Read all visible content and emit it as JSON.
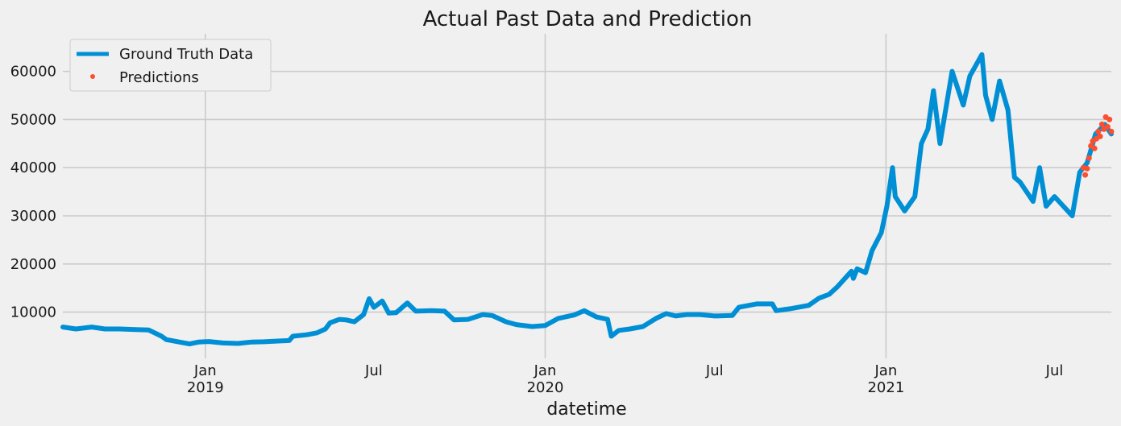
{
  "chart_data": {
    "type": "line",
    "title": "Actual Past Data and Prediction",
    "xlabel": "datetime",
    "ylabel": "",
    "x_range": [
      "2018-08-01",
      "2021-08-31"
    ],
    "ylim": [
      400,
      67800
    ],
    "y_ticks": [
      10000,
      20000,
      30000,
      40000,
      50000,
      60000
    ],
    "x_ticks": [
      {
        "date": "2019-01-01",
        "label": "Jan",
        "sublabel": "2019",
        "grid": true
      },
      {
        "date": "2019-07-01",
        "label": "Jul",
        "sublabel": "",
        "grid": false
      },
      {
        "date": "2020-01-01",
        "label": "Jan",
        "sublabel": "2020",
        "grid": true
      },
      {
        "date": "2020-07-01",
        "label": "Jul",
        "sublabel": "",
        "grid": false
      },
      {
        "date": "2021-01-01",
        "label": "Jan",
        "sublabel": "2021",
        "grid": true
      },
      {
        "date": "2021-07-01",
        "label": "Jul",
        "sublabel": "",
        "grid": false
      }
    ],
    "grid": true,
    "legend_position": "top-left",
    "series": [
      {
        "name": "Ground Truth Data",
        "style": "line",
        "color": "#008fd5",
        "points": [
          [
            "2018-08-01",
            6900
          ],
          [
            "2018-08-15",
            6500
          ],
          [
            "2018-09-01",
            6900
          ],
          [
            "2018-09-15",
            6500
          ],
          [
            "2018-10-01",
            6500
          ],
          [
            "2018-10-15",
            6400
          ],
          [
            "2018-11-01",
            6300
          ],
          [
            "2018-11-15",
            5000
          ],
          [
            "2018-11-20",
            4300
          ],
          [
            "2018-12-01",
            3900
          ],
          [
            "2018-12-15",
            3400
          ],
          [
            "2018-12-25",
            3800
          ],
          [
            "2019-01-05",
            3900
          ],
          [
            "2019-01-20",
            3600
          ],
          [
            "2019-02-05",
            3500
          ],
          [
            "2019-02-20",
            3800
          ],
          [
            "2019-03-05",
            3850
          ],
          [
            "2019-03-20",
            4000
          ],
          [
            "2019-04-01",
            4100
          ],
          [
            "2019-04-05",
            5000
          ],
          [
            "2019-04-20",
            5300
          ],
          [
            "2019-05-01",
            5700
          ],
          [
            "2019-05-10",
            6500
          ],
          [
            "2019-05-15",
            7800
          ],
          [
            "2019-05-25",
            8500
          ],
          [
            "2019-06-01",
            8400
          ],
          [
            "2019-06-10",
            8000
          ],
          [
            "2019-06-20",
            9500
          ],
          [
            "2019-06-26",
            12800
          ],
          [
            "2019-07-01",
            11000
          ],
          [
            "2019-07-10",
            12300
          ],
          [
            "2019-07-17",
            9800
          ],
          [
            "2019-07-25",
            9900
          ],
          [
            "2019-08-06",
            11900
          ],
          [
            "2019-08-15",
            10200
          ],
          [
            "2019-09-01",
            10300
          ],
          [
            "2019-09-15",
            10200
          ],
          [
            "2019-09-25",
            8400
          ],
          [
            "2019-10-10",
            8500
          ],
          [
            "2019-10-26",
            9500
          ],
          [
            "2019-11-05",
            9300
          ],
          [
            "2019-11-20",
            8000
          ],
          [
            "2019-12-01",
            7400
          ],
          [
            "2019-12-18",
            7000
          ],
          [
            "2020-01-01",
            7200
          ],
          [
            "2020-01-15",
            8700
          ],
          [
            "2020-02-01",
            9400
          ],
          [
            "2020-02-12",
            10300
          ],
          [
            "2020-02-25",
            9000
          ],
          [
            "2020-03-08",
            8500
          ],
          [
            "2020-03-12",
            5000
          ],
          [
            "2020-03-20",
            6200
          ],
          [
            "2020-04-01",
            6500
          ],
          [
            "2020-04-15",
            7000
          ],
          [
            "2020-04-29",
            8700
          ],
          [
            "2020-05-10",
            9700
          ],
          [
            "2020-05-20",
            9200
          ],
          [
            "2020-06-01",
            9500
          ],
          [
            "2020-06-15",
            9500
          ],
          [
            "2020-07-01",
            9200
          ],
          [
            "2020-07-20",
            9300
          ],
          [
            "2020-07-27",
            11000
          ],
          [
            "2020-08-15",
            11700
          ],
          [
            "2020-09-01",
            11700
          ],
          [
            "2020-09-05",
            10300
          ],
          [
            "2020-09-20",
            10700
          ],
          [
            "2020-10-10",
            11400
          ],
          [
            "2020-10-21",
            12900
          ],
          [
            "2020-11-01",
            13700
          ],
          [
            "2020-11-10",
            15300
          ],
          [
            "2020-11-25",
            18500
          ],
          [
            "2020-11-27",
            17000
          ],
          [
            "2020-12-01",
            19000
          ],
          [
            "2020-12-10",
            18200
          ],
          [
            "2020-12-17",
            22800
          ],
          [
            "2020-12-27",
            26500
          ],
          [
            "2021-01-02",
            32000
          ],
          [
            "2021-01-08",
            40000
          ],
          [
            "2021-01-11",
            34000
          ],
          [
            "2021-01-21",
            31000
          ],
          [
            "2021-02-01",
            34000
          ],
          [
            "2021-02-08",
            45000
          ],
          [
            "2021-02-15",
            48000
          ],
          [
            "2021-02-21",
            56000
          ],
          [
            "2021-02-28",
            45000
          ],
          [
            "2021-03-13",
            60000
          ],
          [
            "2021-03-25",
            53000
          ],
          [
            "2021-04-01",
            59000
          ],
          [
            "2021-04-14",
            63500
          ],
          [
            "2021-04-18",
            55000
          ],
          [
            "2021-04-25",
            50000
          ],
          [
            "2021-05-03",
            58000
          ],
          [
            "2021-05-12",
            52000
          ],
          [
            "2021-05-19",
            38000
          ],
          [
            "2021-05-25",
            37000
          ],
          [
            "2021-06-08",
            33000
          ],
          [
            "2021-06-15",
            40000
          ],
          [
            "2021-06-22",
            32000
          ],
          [
            "2021-07-01",
            34000
          ],
          [
            "2021-07-20",
            30000
          ],
          [
            "2021-07-28",
            39000
          ],
          [
            "2021-08-05",
            41000
          ],
          [
            "2021-08-14",
            47000
          ],
          [
            "2021-08-24",
            49000
          ],
          [
            "2021-08-31",
            47000
          ]
        ]
      },
      {
        "name": "Predictions",
        "style": "points",
        "color": "#fc4f30",
        "points": [
          [
            "2021-08-01",
            40000
          ],
          [
            "2021-08-03",
            38500
          ],
          [
            "2021-08-05",
            39800
          ],
          [
            "2021-08-07",
            42000
          ],
          [
            "2021-08-09",
            44500
          ],
          [
            "2021-08-11",
            45500
          ],
          [
            "2021-08-13",
            44000
          ],
          [
            "2021-08-15",
            46000
          ],
          [
            "2021-08-17",
            47500
          ],
          [
            "2021-08-19",
            46500
          ],
          [
            "2021-08-21",
            49000
          ],
          [
            "2021-08-23",
            48000
          ],
          [
            "2021-08-25",
            50500
          ],
          [
            "2021-08-27",
            48500
          ],
          [
            "2021-08-29",
            50000
          ],
          [
            "2021-08-31",
            47500
          ]
        ]
      }
    ]
  }
}
